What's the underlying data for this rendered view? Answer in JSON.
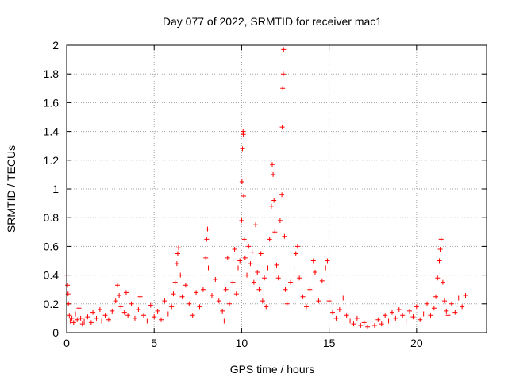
{
  "chart_data": {
    "type": "scatter",
    "title": "Day 077 of 2022, SRMTID for receiver mac1",
    "xlabel": "GPS time / hours",
    "ylabel": "SRMTID / TECUs",
    "xlim": [
      0,
      24
    ],
    "ylim": [
      0,
      2
    ],
    "x_ticks": [
      "0",
      "5",
      "10",
      "15",
      "20"
    ],
    "y_ticks": [
      "0",
      "0.2",
      "0.4",
      "0.6",
      "0.8",
      "1",
      "1.2",
      "1.4",
      "1.6",
      "1.8",
      "2"
    ],
    "grid": true,
    "marker": "+",
    "series": [
      {
        "name": "SRMTID",
        "color": "#ff0000",
        "points": [
          [
            0.0,
            0.4
          ],
          [
            0.05,
            0.33
          ],
          [
            0.08,
            0.27
          ],
          [
            0.1,
            0.2
          ],
          [
            0.15,
            0.12
          ],
          [
            0.2,
            0.08
          ],
          [
            0.3,
            0.1
          ],
          [
            0.4,
            0.07
          ],
          [
            0.5,
            0.13
          ],
          [
            0.6,
            0.09
          ],
          [
            0.7,
            0.17
          ],
          [
            0.8,
            0.1
          ],
          [
            0.9,
            0.06
          ],
          [
            1.0,
            0.08
          ],
          [
            1.2,
            0.11
          ],
          [
            1.4,
            0.07
          ],
          [
            1.5,
            0.14
          ],
          [
            1.7,
            0.1
          ],
          [
            1.9,
            0.16
          ],
          [
            2.0,
            0.08
          ],
          [
            2.2,
            0.12
          ],
          [
            2.4,
            0.09
          ],
          [
            2.6,
            0.15
          ],
          [
            2.8,
            0.22
          ],
          [
            2.9,
            0.33
          ],
          [
            3.0,
            0.26
          ],
          [
            3.1,
            0.18
          ],
          [
            3.3,
            0.14
          ],
          [
            3.4,
            0.28
          ],
          [
            3.5,
            0.12
          ],
          [
            3.7,
            0.2
          ],
          [
            3.9,
            0.1
          ],
          [
            4.1,
            0.16
          ],
          [
            4.2,
            0.25
          ],
          [
            4.4,
            0.12
          ],
          [
            4.6,
            0.08
          ],
          [
            4.8,
            0.19
          ],
          [
            5.0,
            0.11
          ],
          [
            5.2,
            0.15
          ],
          [
            5.4,
            0.09
          ],
          [
            5.6,
            0.22
          ],
          [
            5.8,
            0.13
          ],
          [
            6.0,
            0.18
          ],
          [
            6.1,
            0.27
          ],
          [
            6.2,
            0.35
          ],
          [
            6.3,
            0.48
          ],
          [
            6.35,
            0.55
          ],
          [
            6.4,
            0.59
          ],
          [
            6.5,
            0.4
          ],
          [
            6.6,
            0.25
          ],
          [
            6.8,
            0.33
          ],
          [
            7.0,
            0.2
          ],
          [
            7.2,
            0.12
          ],
          [
            7.4,
            0.28
          ],
          [
            7.6,
            0.18
          ],
          [
            7.8,
            0.3
          ],
          [
            7.95,
            0.52
          ],
          [
            8.0,
            0.65
          ],
          [
            8.05,
            0.72
          ],
          [
            8.1,
            0.45
          ],
          [
            8.3,
            0.26
          ],
          [
            8.5,
            0.37
          ],
          [
            8.7,
            0.22
          ],
          [
            8.9,
            0.15
          ],
          [
            9.0,
            0.08
          ],
          [
            9.1,
            0.3
          ],
          [
            9.2,
            0.52
          ],
          [
            9.3,
            0.2
          ],
          [
            9.5,
            0.35
          ],
          [
            9.6,
            0.58
          ],
          [
            9.7,
            0.27
          ],
          [
            9.8,
            0.45
          ],
          [
            9.9,
            0.5
          ],
          [
            10.0,
            0.78
          ],
          [
            10.02,
            1.05
          ],
          [
            10.05,
            1.28
          ],
          [
            10.08,
            1.4
          ],
          [
            10.1,
            1.38
          ],
          [
            10.12,
            0.95
          ],
          [
            10.15,
            0.65
          ],
          [
            10.2,
            0.52
          ],
          [
            10.3,
            0.4
          ],
          [
            10.4,
            0.6
          ],
          [
            10.5,
            0.48
          ],
          [
            10.6,
            0.56
          ],
          [
            10.7,
            0.35
          ],
          [
            10.8,
            0.75
          ],
          [
            10.9,
            0.42
          ],
          [
            11.0,
            0.3
          ],
          [
            11.1,
            0.55
          ],
          [
            11.2,
            0.22
          ],
          [
            11.3,
            0.38
          ],
          [
            11.4,
            0.18
          ],
          [
            11.5,
            0.45
          ],
          [
            11.6,
            0.65
          ],
          [
            11.7,
            0.88
          ],
          [
            11.75,
            1.17
          ],
          [
            11.8,
            1.1
          ],
          [
            11.85,
            0.92
          ],
          [
            11.9,
            0.7
          ],
          [
            12.0,
            0.47
          ],
          [
            12.1,
            0.38
          ],
          [
            12.2,
            0.78
          ],
          [
            12.3,
            0.96
          ],
          [
            12.32,
            1.43
          ],
          [
            12.35,
            1.7
          ],
          [
            12.38,
            1.8
          ],
          [
            12.4,
            1.97
          ],
          [
            12.45,
            0.67
          ],
          [
            12.5,
            0.3
          ],
          [
            12.6,
            0.2
          ],
          [
            12.8,
            0.35
          ],
          [
            13.0,
            0.45
          ],
          [
            13.1,
            0.55
          ],
          [
            13.2,
            0.6
          ],
          [
            13.3,
            0.38
          ],
          [
            13.5,
            0.25
          ],
          [
            13.7,
            0.18
          ],
          [
            13.9,
            0.3
          ],
          [
            14.1,
            0.5
          ],
          [
            14.2,
            0.42
          ],
          [
            14.4,
            0.22
          ],
          [
            14.6,
            0.36
          ],
          [
            14.8,
            0.45
          ],
          [
            14.9,
            0.5
          ],
          [
            15.0,
            0.22
          ],
          [
            15.2,
            0.14
          ],
          [
            15.4,
            0.1
          ],
          [
            15.6,
            0.16
          ],
          [
            15.8,
            0.24
          ],
          [
            16.0,
            0.12
          ],
          [
            16.2,
            0.08
          ],
          [
            16.4,
            0.06
          ],
          [
            16.6,
            0.1
          ],
          [
            16.8,
            0.05
          ],
          [
            17.0,
            0.07
          ],
          [
            17.2,
            0.04
          ],
          [
            17.4,
            0.08
          ],
          [
            17.6,
            0.05
          ],
          [
            17.8,
            0.09
          ],
          [
            18.0,
            0.06
          ],
          [
            18.2,
            0.12
          ],
          [
            18.4,
            0.08
          ],
          [
            18.6,
            0.14
          ],
          [
            18.8,
            0.1
          ],
          [
            19.0,
            0.16
          ],
          [
            19.2,
            0.12
          ],
          [
            19.4,
            0.08
          ],
          [
            19.6,
            0.15
          ],
          [
            19.8,
            0.11
          ],
          [
            20.0,
            0.18
          ],
          [
            20.2,
            0.09
          ],
          [
            20.4,
            0.13
          ],
          [
            20.6,
            0.2
          ],
          [
            20.8,
            0.12
          ],
          [
            21.0,
            0.17
          ],
          [
            21.1,
            0.25
          ],
          [
            21.2,
            0.38
          ],
          [
            21.3,
            0.5
          ],
          [
            21.35,
            0.58
          ],
          [
            21.4,
            0.65
          ],
          [
            21.5,
            0.35
          ],
          [
            21.6,
            0.22
          ],
          [
            21.7,
            0.15
          ],
          [
            21.8,
            0.12
          ],
          [
            22.0,
            0.2
          ],
          [
            22.2,
            0.14
          ],
          [
            22.4,
            0.24
          ],
          [
            22.6,
            0.18
          ],
          [
            22.8,
            0.26
          ]
        ]
      }
    ]
  }
}
